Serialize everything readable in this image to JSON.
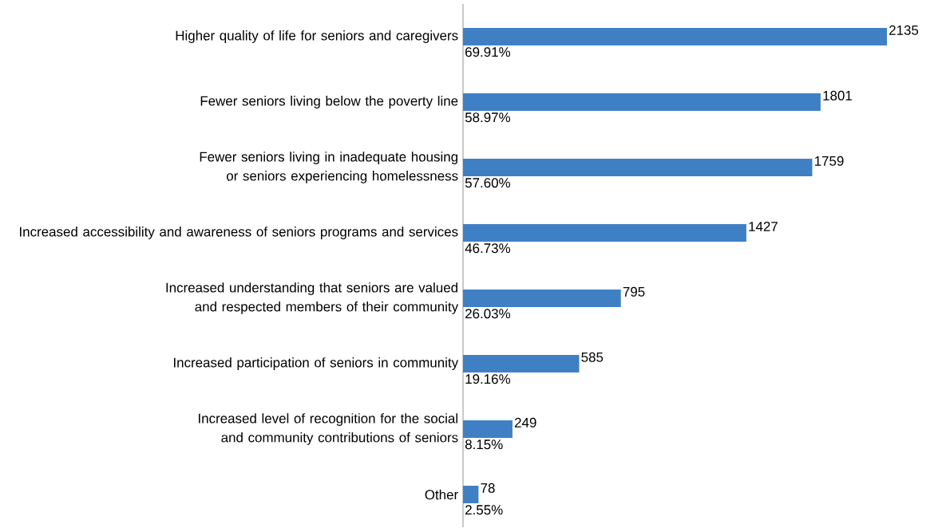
{
  "chart_data": {
    "type": "bar",
    "orientation": "horizontal",
    "categories": [
      "Higher quality of life for seniors and caregivers",
      "Fewer seniors living below the poverty line",
      "Fewer seniors living in inadequate housing or seniors experiencing homelessness",
      "Increased accessibility and awareness of seniors programs and services",
      "Increased understanding that seniors are valued and respected members of their community",
      "Increased participation of seniors in community",
      "Increased level of recognition for the social and community contributions of seniors",
      "Other"
    ],
    "values": [
      2135,
      1801,
      1759,
      1427,
      795,
      585,
      249,
      78
    ],
    "color": "#3f80c4",
    "data_labels": true,
    "annotations": [
      "69.91%",
      "58.97%",
      "57.60%",
      "46.73%",
      "26.03%",
      "19.16%",
      "8.15%",
      "2.55%"
    ]
  }
}
